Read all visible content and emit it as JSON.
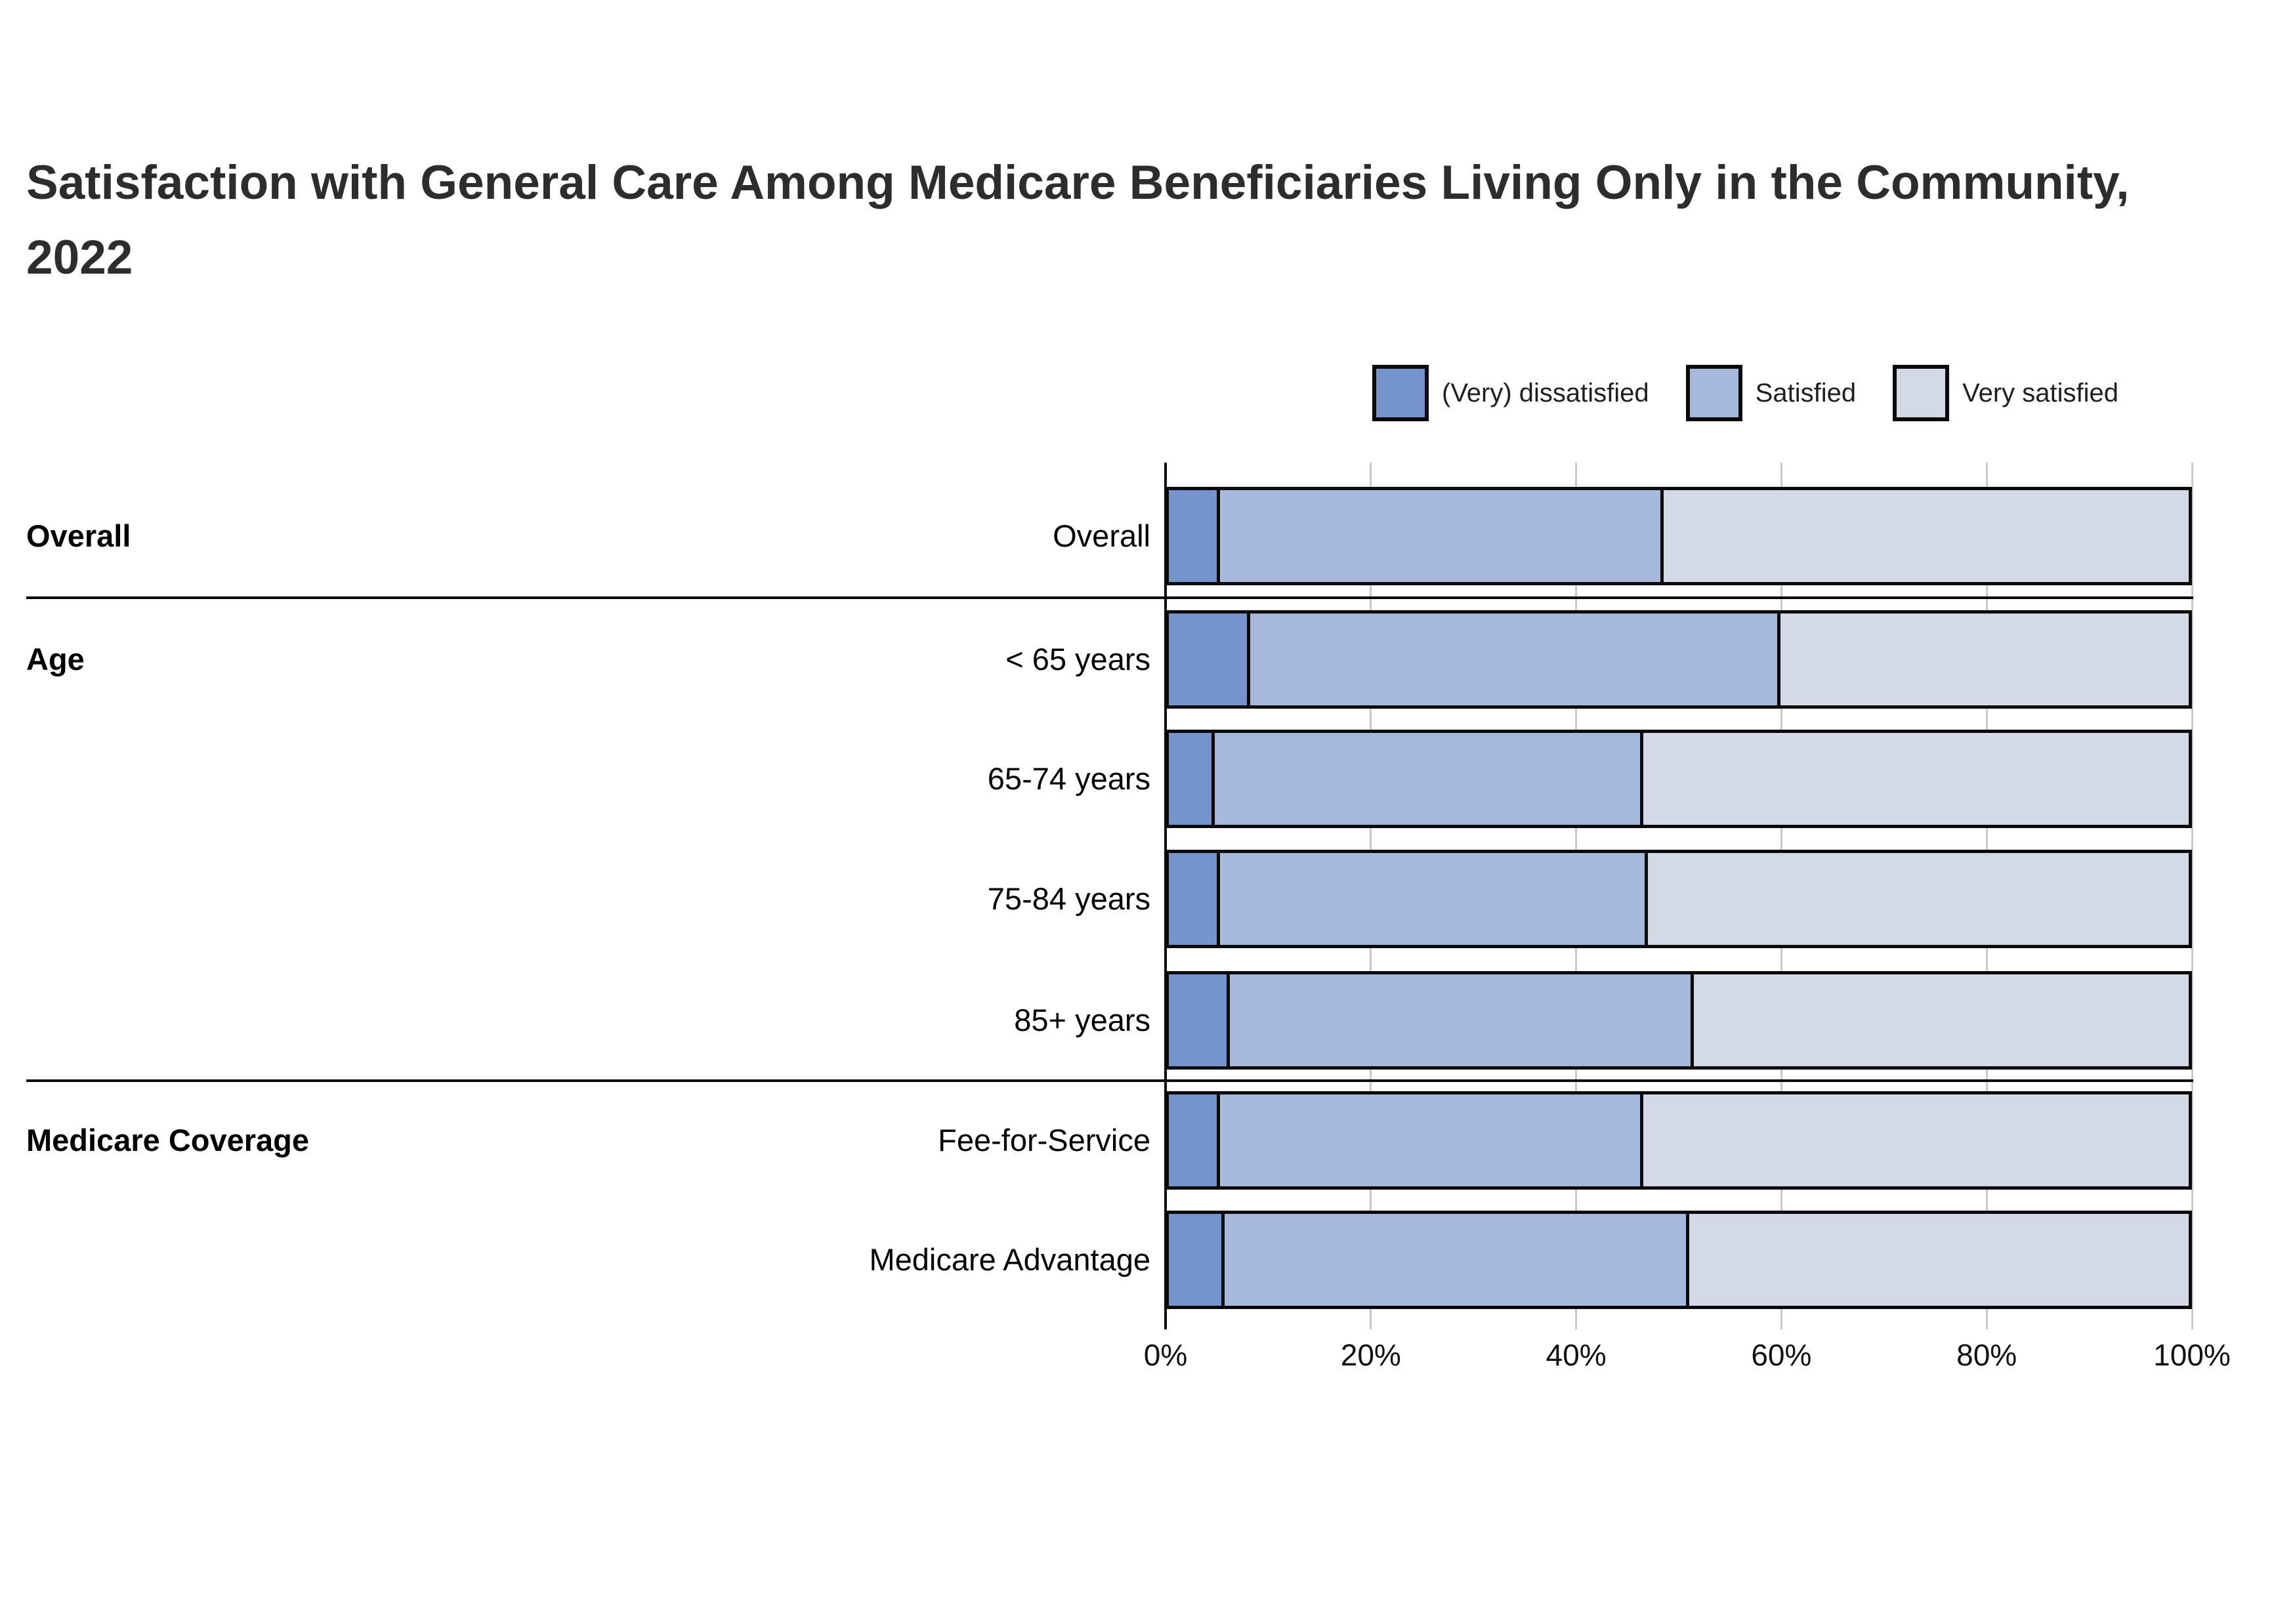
{
  "page_title": "Satisfaction with General Care Among Medicare Beneficiaries Living Only in the Community, 2022",
  "legend": [
    {
      "label": "(Very) dissatisfied",
      "color": "#7594CE"
    },
    {
      "label": "Satisfied",
      "color": "#A6B9DD"
    },
    {
      "label": "Very satisfied",
      "color": "#D3DAE5"
    }
  ],
  "chart_data": {
    "type": "bar",
    "stacked": true,
    "orientation": "horizontal",
    "title": "Satisfaction with General Care Among Medicare Beneficiaries Living Only in the Community, 2022",
    "xlabel": "",
    "ylabel": "",
    "legend_position": "top-right",
    "grid": true,
    "x_axis": {
      "ticks": [
        "0%",
        "20%",
        "40%",
        "60%",
        "80%",
        "100%"
      ],
      "tick_values": [
        0,
        20,
        40,
        60,
        80,
        100
      ],
      "range": [
        0,
        100
      ]
    },
    "categories": [
      "Overall",
      "< 65 years",
      "65-74 years",
      "75-84 years",
      "85+ years",
      "Fee-for-Service",
      "Medicare Advantage"
    ],
    "groups": [
      {
        "label": "Overall",
        "categories": [
          "Overall"
        ]
      },
      {
        "label": "Age",
        "categories": [
          "< 65 years",
          "65-74 years",
          "75-84 years",
          "85+ years"
        ]
      },
      {
        "label": "Medicare Coverage",
        "categories": [
          "Fee-for-Service",
          "Medicare Advantage"
        ]
      }
    ],
    "series": [
      {
        "name": "(Very) dissatisfied",
        "color": "#7594CE",
        "values": [
          5,
          8,
          4.5,
          5,
          6,
          5,
          5.5
        ]
      },
      {
        "name": "Satisfied",
        "color": "#A6B9DD",
        "values": [
          43.5,
          52,
          42,
          42,
          45.5,
          41.5,
          45.5
        ]
      },
      {
        "name": "Very satisfied",
        "color": "#D3DAE5",
        "values": [
          51.5,
          40,
          53.5,
          53,
          48.5,
          53.5,
          49
        ]
      }
    ],
    "rows": [
      {
        "group": "Overall",
        "label": "Overall",
        "values": [
          5,
          43.5,
          51.5
        ]
      },
      {
        "group": "Age",
        "label": "< 65 years",
        "values": [
          8,
          52,
          40
        ]
      },
      {
        "group": "Age",
        "label": "65-74 years",
        "values": [
          4.5,
          42,
          53.5
        ]
      },
      {
        "group": "Age",
        "label": "75-84 years",
        "values": [
          5,
          42,
          53
        ]
      },
      {
        "group": "Age",
        "label": "85+ years",
        "values": [
          6,
          45.5,
          48.5
        ]
      },
      {
        "group": "Medicare Coverage",
        "label": "Fee-for-Service",
        "values": [
          5,
          41.5,
          53.5
        ]
      },
      {
        "group": "Medicare Coverage",
        "label": "Medicare Advantage",
        "values": [
          5.5,
          45.5,
          49
        ]
      }
    ]
  }
}
